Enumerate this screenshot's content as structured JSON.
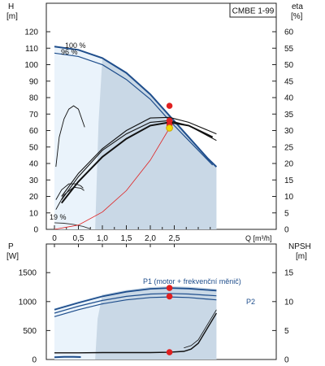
{
  "colors": {
    "op_band_fill": "#c9d8e6",
    "op_band_light": "#eaf3fb",
    "pump_curve": "#1f4e8c",
    "efficiency": "#111111",
    "system_curve": "#e02020",
    "op_point": "#e02020",
    "duty_point": "#f5d800",
    "axis": "#222222"
  },
  "chart_data": [
    {
      "type": "line",
      "title": "CMBE 1-99",
      "left_axis": {
        "label": "H",
        "unit": "[m]",
        "ylim": [
          0,
          120
        ],
        "ticks": [
          0,
          10,
          20,
          30,
          40,
          50,
          60,
          70,
          80,
          90,
          100,
          110,
          120
        ]
      },
      "right_axis": {
        "label": "eta",
        "unit": "[%]",
        "ylim": [
          0,
          60
        ],
        "ticks": [
          0,
          5,
          10,
          15,
          20,
          25,
          30,
          35,
          40,
          45,
          50,
          55,
          60
        ]
      },
      "x_axis": {
        "label": "Q [m³/h]",
        "xlim": [
          0,
          3.5
        ],
        "ticks": [
          0,
          0.5,
          1.0,
          1.5,
          2.0,
          2.5
        ],
        "tick_labels": [
          "0",
          "0,5",
          "1,0",
          "1,5",
          "2,0",
          "2,5"
        ]
      },
      "speed_labels": [
        "100 %",
        "96 %",
        "19 %"
      ],
      "series": [
        {
          "axis": "H",
          "x": [
            0,
            0.5,
            1.0,
            1.5,
            2.0,
            2.4,
            2.8,
            3.2,
            3.38
          ],
          "y": [
            111,
            109,
            104,
            95,
            82,
            69,
            56,
            43,
            38
          ]
        },
        {
          "axis": "H",
          "x": [
            0,
            0.5,
            1.0,
            1.5,
            2.0,
            2.4,
            2.8,
            3.2,
            3.3
          ],
          "y": [
            107,
            105,
            100,
            91,
            79,
            66,
            54,
            42,
            39
          ]
        },
        {
          "axis": "H",
          "x": [
            0,
            0.2,
            0.4,
            0.6,
            0.75
          ],
          "y": [
            4,
            3.7,
            3,
            1.8,
            0.3
          ]
        },
        {
          "axis": "eta",
          "x": [
            0.15,
            0.5,
            1.0,
            1.5,
            2.0,
            2.4,
            2.8,
            3.38
          ],
          "y": [
            10,
            17,
            24.5,
            30,
            33.8,
            34,
            32.5,
            29
          ]
        },
        {
          "axis": "eta",
          "x": [
            0.15,
            0.5,
            1.0,
            1.5,
            2.0,
            2.4,
            2.8,
            3.38
          ],
          "y": [
            9,
            16,
            24,
            29,
            32.5,
            33,
            31.5,
            27
          ]
        },
        {
          "axis": "eta",
          "x": [
            0.15,
            0.5,
            1.0,
            1.5,
            2.0,
            2.4,
            2.8,
            3.3
          ],
          "y": [
            8,
            14.5,
            22,
            27.5,
            31.5,
            32.5,
            31.5,
            28
          ]
        },
        {
          "axis": "eta",
          "x": [
            0.03,
            0.1,
            0.2,
            0.3,
            0.4,
            0.5,
            0.63
          ],
          "y": [
            19,
            28,
            33.5,
            36.5,
            37.5,
            36.5,
            31
          ]
        },
        {
          "axis": "eta",
          "x": [
            0.03,
            0.15,
            0.3,
            0.45,
            0.55,
            0.6
          ],
          "y": [
            9,
            12,
            13.8,
            13.8,
            13.2,
            12.5
          ]
        },
        {
          "axis": "eta",
          "x": [
            0.03,
            0.2,
            0.4,
            0.55,
            0.62
          ],
          "y": [
            6,
            10.5,
            12.8,
            12.5,
            11.8
          ]
        },
        {
          "axis": "H",
          "x": [
            0,
            0.5,
            1.0,
            1.5,
            2.0,
            2.4
          ],
          "y": [
            0,
            2.6,
            10.5,
            23.5,
            42,
            61.5
          ]
        }
      ],
      "points": [
        {
          "axis": "eta",
          "x": 2.4,
          "y": 37.5
        },
        {
          "axis": "eta",
          "x": 2.4,
          "y": 33
        },
        {
          "axis": "H",
          "x": 2.4,
          "y": 63.5
        },
        {
          "axis": "H",
          "x": 2.4,
          "y": 61.5
        }
      ]
    },
    {
      "type": "line",
      "left_axis": {
        "label": "P",
        "unit": "[W]",
        "ylim": [
          0,
          1800
        ],
        "ticks": [
          0,
          500,
          1000,
          1500
        ],
        "tick_labels": [
          "0",
          "500",
          "1000",
          "1500"
        ]
      },
      "right_axis": {
        "label": "NPSH",
        "unit": "[m]",
        "ylim": [
          0,
          18
        ],
        "ticks": [
          0,
          5,
          10,
          15
        ]
      },
      "x_axis": {
        "xlim": [
          0,
          3.5
        ]
      },
      "series": [
        {
          "name": "P1 (motor + frekvenční měnič)",
          "axis": "P",
          "x": [
            0,
            0.5,
            1.0,
            1.5,
            2.0,
            2.4,
            2.8,
            3.38
          ],
          "y": [
            860,
            980,
            1090,
            1170,
            1220,
            1235,
            1225,
            1190
          ]
        },
        {
          "axis": "P",
          "x": [
            0,
            0.5,
            1.0,
            1.5,
            2.0,
            2.4,
            2.8,
            3.38
          ],
          "y": [
            800,
            920,
            1020,
            1090,
            1130,
            1140,
            1130,
            1100
          ]
        },
        {
          "name": "P2",
          "axis": "P",
          "x": [
            0,
            0.5,
            1.0,
            1.5,
            2.0,
            2.4,
            2.8,
            3.38
          ],
          "y": [
            740,
            860,
            960,
            1030,
            1070,
            1080,
            1070,
            1030
          ]
        },
        {
          "axis": "P",
          "x": [
            0,
            0.2,
            0.4,
            0.55
          ],
          "y": [
            40,
            45,
            45,
            42
          ]
        },
        {
          "axis": "NPSH",
          "x": [
            0,
            0.5,
            1.0,
            1.5,
            2.0,
            2.4,
            2.7,
            2.85,
            3.0,
            3.38
          ],
          "y": [
            1.15,
            1.15,
            1.2,
            1.2,
            1.2,
            1.25,
            1.4,
            1.8,
            2.8,
            8
          ]
        }
      ],
      "points": [
        {
          "axis": "P",
          "x": 2.4,
          "y": 1235
        },
        {
          "axis": "P",
          "x": 2.4,
          "y": 1090
        },
        {
          "axis": "NPSH",
          "x": 2.4,
          "y": 1.25
        }
      ]
    }
  ]
}
